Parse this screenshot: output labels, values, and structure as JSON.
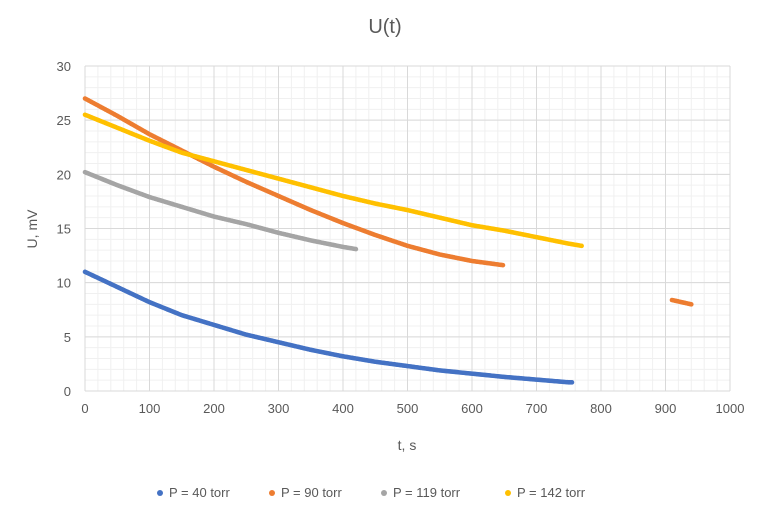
{
  "chart_data": {
    "type": "scatter",
    "title": "U(t)",
    "xlabel": "t, s",
    "ylabel": "U, mV",
    "xlim": [
      0,
      1000
    ],
    "ylim": [
      0,
      30
    ],
    "xticks": [
      0,
      100,
      200,
      300,
      400,
      500,
      600,
      700,
      800,
      900,
      1000
    ],
    "yticks": [
      0,
      5,
      10,
      15,
      20,
      25,
      30
    ],
    "xtick_labels": [
      "0",
      "100",
      "200",
      "300",
      "400",
      "500",
      "600",
      "700",
      "800",
      "900",
      "1000"
    ],
    "ytick_labels": [
      "0",
      "5",
      "10",
      "15",
      "20",
      "25",
      "30"
    ],
    "grid": true,
    "minor_grid": true,
    "legend_position": "bottom",
    "series": [
      {
        "name": "P = 40 torr",
        "color": "#4472c4",
        "x": [
          0,
          50,
          100,
          150,
          200,
          250,
          300,
          350,
          400,
          450,
          500,
          550,
          600,
          650,
          700,
          730,
          750,
          755
        ],
        "y": [
          11.0,
          9.6,
          8.2,
          7.0,
          6.1,
          5.2,
          4.5,
          3.8,
          3.2,
          2.7,
          2.3,
          1.9,
          1.6,
          1.3,
          1.05,
          0.9,
          0.8,
          0.8
        ]
      },
      {
        "name": "P = 90 torr",
        "color": "#ed7d31",
        "x": [
          0,
          50,
          100,
          150,
          200,
          250,
          300,
          350,
          400,
          450,
          500,
          550,
          600,
          650,
          910,
          925,
          940
        ],
        "y": [
          27.0,
          25.4,
          23.7,
          22.2,
          20.7,
          19.3,
          18.0,
          16.7,
          15.5,
          14.4,
          13.4,
          12.6,
          12.0,
          11.6,
          8.4,
          8.2,
          8.0
        ]
      },
      {
        "name": "P = 119 torr",
        "color": "#a5a5a5",
        "x": [
          0,
          50,
          100,
          150,
          200,
          250,
          300,
          350,
          400,
          420
        ],
        "y": [
          20.2,
          19.0,
          17.9,
          17.0,
          16.1,
          15.4,
          14.6,
          13.9,
          13.3,
          13.1
        ]
      },
      {
        "name": "P = 142 torr",
        "color": "#ffc000",
        "x": [
          0,
          50,
          100,
          150,
          200,
          250,
          300,
          350,
          400,
          450,
          500,
          550,
          600,
          650,
          700,
          750,
          770
        ],
        "y": [
          25.5,
          24.3,
          23.1,
          22.0,
          21.2,
          20.4,
          19.6,
          18.8,
          18.0,
          17.3,
          16.7,
          16.0,
          15.3,
          14.8,
          14.2,
          13.6,
          13.4
        ]
      }
    ]
  }
}
